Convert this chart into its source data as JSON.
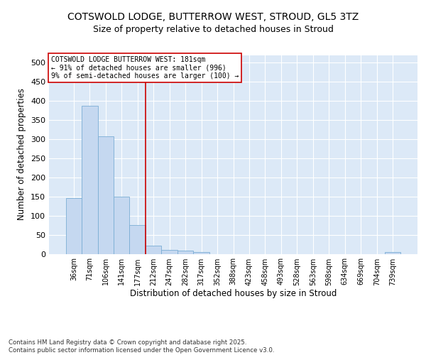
{
  "title_line1": "COTSWOLD LODGE, BUTTERROW WEST, STROUD, GL5 3TZ",
  "title_line2": "Size of property relative to detached houses in Stroud",
  "xlabel": "Distribution of detached houses by size in Stroud",
  "ylabel": "Number of detached properties",
  "bar_color": "#c5d8f0",
  "bar_edge_color": "#7aadd4",
  "background_color": "#dce9f7",
  "fig_background": "#ffffff",
  "grid_color": "#ffffff",
  "categories": [
    "36sqm",
    "71sqm",
    "106sqm",
    "141sqm",
    "177sqm",
    "212sqm",
    "247sqm",
    "282sqm",
    "317sqm",
    "352sqm",
    "388sqm",
    "423sqm",
    "458sqm",
    "493sqm",
    "528sqm",
    "563sqm",
    "598sqm",
    "634sqm",
    "669sqm",
    "704sqm",
    "739sqm"
  ],
  "values": [
    145,
    388,
    308,
    150,
    75,
    22,
    10,
    8,
    5,
    0,
    0,
    0,
    0,
    0,
    0,
    0,
    0,
    0,
    0,
    0,
    5
  ],
  "vline_x": 4.5,
  "vline_color": "#cc0000",
  "annotation_text": "COTSWOLD LODGE BUTTERROW WEST: 181sqm\n← 91% of detached houses are smaller (996)\n9% of semi-detached houses are larger (100) →",
  "ylim": [
    0,
    520
  ],
  "yticks": [
    0,
    50,
    100,
    150,
    200,
    250,
    300,
    350,
    400,
    450,
    500
  ],
  "footnote": "Contains HM Land Registry data © Crown copyright and database right 2025.\nContains public sector information licensed under the Open Government Licence v3.0.",
  "title_fontsize": 10,
  "subtitle_fontsize": 9,
  "axis_label_fontsize": 8.5,
  "tick_fontsize": 7,
  "annotation_fontsize": 7
}
